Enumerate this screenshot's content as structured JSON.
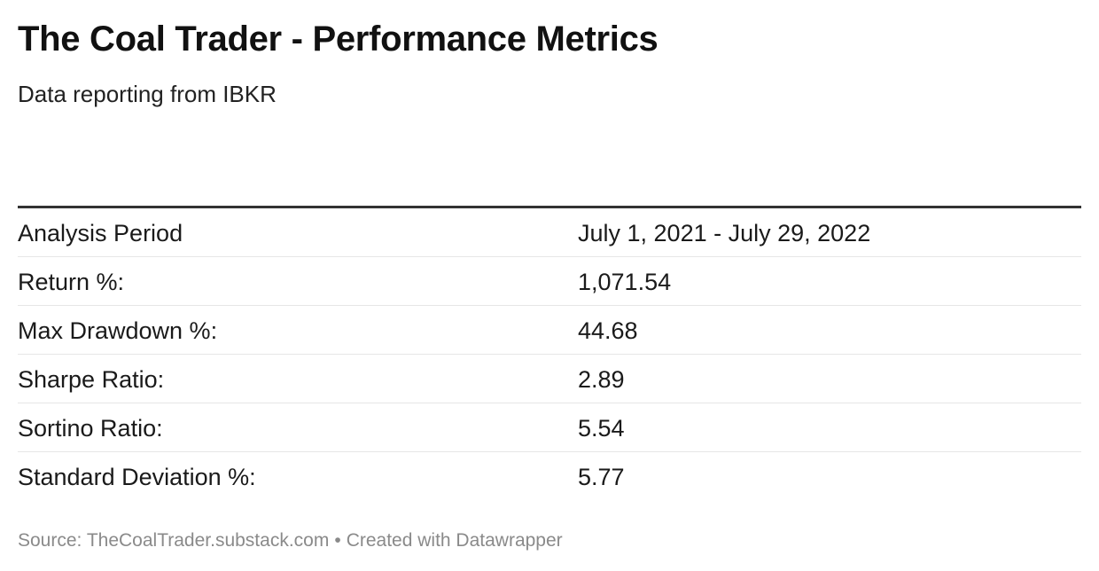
{
  "chart_data": {
    "type": "table",
    "title": "The Coal Trader - Performance Metrics",
    "subtitle": "Data reporting from IBKR",
    "rows": [
      {
        "label": "Analysis Period",
        "value": "July 1, 2021 - July 29, 2022"
      },
      {
        "label": "Return %:",
        "value": "1,071.54"
      },
      {
        "label": "Max Drawdown %:",
        "value": "44.68"
      },
      {
        "label": "Sharpe Ratio:",
        "value": "2.89"
      },
      {
        "label": "Sortino Ratio:",
        "value": "5.54"
      },
      {
        "label": "Standard Deviation %:",
        "value": "5.77"
      }
    ],
    "footer": {
      "source": "Source: TheCoalTrader.substack.com",
      "separator": "•",
      "credit": "Created with Datawrapper"
    }
  }
}
